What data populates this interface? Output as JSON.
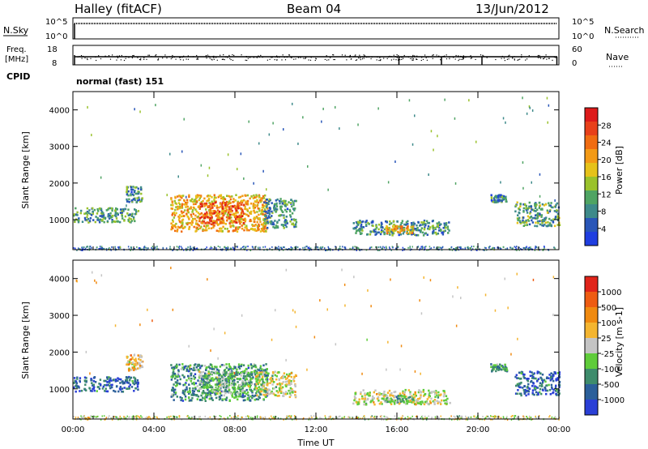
{
  "header": {
    "station": "Halley (fitACF)",
    "beam": "Beam 04",
    "date": "13/Jun/2012"
  },
  "top_panels": {
    "nsky_label": "N.Sky",
    "nsky_ticks": [
      "10^5",
      "10^0"
    ],
    "nsearch_label": "N.Search",
    "nsearch_ticks": [
      "10^5",
      "10^0"
    ],
    "freq_label_1": "Freq.",
    "freq_label_2": "[MHz]",
    "freq_ticks": [
      "18",
      "8"
    ],
    "nave_label": "Nave",
    "nave_ticks": [
      "60",
      "0"
    ],
    "cpid_label": "CPID",
    "cpid_value": "normal (fast) 151"
  },
  "chart_data": [
    {
      "type": "heatmap",
      "name": "power",
      "ylabel": "Slant Range [km]",
      "ylim": [
        180,
        4500
      ],
      "y_ticks": [
        1000,
        2000,
        3000,
        4000
      ],
      "x_ticks": [
        "00:00",
        "04:00",
        "08:00",
        "12:00",
        "16:00",
        "20:00",
        "00:00"
      ],
      "colorbar": {
        "label": "Power [dB]",
        "range": [
          0,
          32
        ],
        "ticks": [
          4,
          8,
          12,
          16,
          20,
          24,
          28
        ],
        "colors": [
          "#1f3ee0",
          "#2956b8",
          "#3e8a8a",
          "#4fa463",
          "#9ac22c",
          "#e6c21a",
          "#f39a16",
          "#f06c12",
          "#e8401a",
          "#dd1a1a"
        ]
      },
      "features": [
        {
          "t": [
            0.0,
            3.2
          ],
          "r": [
            950,
            1350
          ],
          "level": 10
        },
        {
          "t": [
            2.6,
            3.4
          ],
          "r": [
            1500,
            1950
          ],
          "level": 9
        },
        {
          "t": [
            4.8,
            9.6
          ],
          "r": [
            700,
            1700
          ],
          "level": 19
        },
        {
          "t": [
            6.2,
            8.4
          ],
          "r": [
            900,
            1500
          ],
          "level": 26
        },
        {
          "t": [
            9.4,
            11.0
          ],
          "r": [
            800,
            1600
          ],
          "level": 9
        },
        {
          "t": [
            13.8,
            18.6
          ],
          "r": [
            600,
            1000
          ],
          "level": 9
        },
        {
          "t": [
            15.4,
            16.8
          ],
          "r": [
            650,
            850
          ],
          "level": 20
        },
        {
          "t": [
            20.6,
            21.4
          ],
          "r": [
            1500,
            1700
          ],
          "level": 8
        },
        {
          "t": [
            21.8,
            24.0
          ],
          "r": [
            850,
            1500
          ],
          "level": 11
        }
      ]
    },
    {
      "type": "heatmap",
      "name": "velocity",
      "ylabel": "Slant Range [km]",
      "ylim": [
        180,
        4500
      ],
      "y_ticks": [
        1000,
        2000,
        3000,
        4000
      ],
      "x_ticks": [
        "00:00",
        "04:00",
        "08:00",
        "12:00",
        "16:00",
        "20:00",
        "00:00"
      ],
      "xlabel": "Time UT",
      "colorbar": {
        "label": "Velocity [m s-1]",
        "tick_labels": [
          "1000",
          "500",
          "100",
          "25",
          "-25",
          "-100",
          "-500",
          "-1000"
        ],
        "colors": [
          "#2a3fd6",
          "#2b5f9a",
          "#3e8c6c",
          "#5fcc3a",
          "#c4c4c4",
          "#f4b530",
          "#f08a10",
          "#ee5c12",
          "#e0241a"
        ]
      },
      "features": [
        {
          "t": [
            0.0,
            3.2
          ],
          "r": [
            950,
            1350
          ],
          "class": 7
        },
        {
          "t": [
            2.6,
            3.4
          ],
          "r": [
            1500,
            1950
          ],
          "class": 3
        },
        {
          "t": [
            4.8,
            9.6
          ],
          "r": [
            700,
            1700
          ],
          "class": 6
        },
        {
          "t": [
            6.2,
            8.8
          ],
          "r": [
            900,
            1500
          ],
          "class": 5
        },
        {
          "t": [
            9.0,
            11.0
          ],
          "r": [
            800,
            1500
          ],
          "class": 4
        },
        {
          "t": [
            13.8,
            18.6
          ],
          "r": [
            600,
            1000
          ],
          "class": 4
        },
        {
          "t": [
            15.4,
            16.8
          ],
          "r": [
            650,
            850
          ],
          "class": 5
        },
        {
          "t": [
            20.6,
            21.4
          ],
          "r": [
            1500,
            1700
          ],
          "class": 6
        },
        {
          "t": [
            21.8,
            24.0
          ],
          "r": [
            850,
            1500
          ],
          "class": 7
        }
      ]
    }
  ]
}
